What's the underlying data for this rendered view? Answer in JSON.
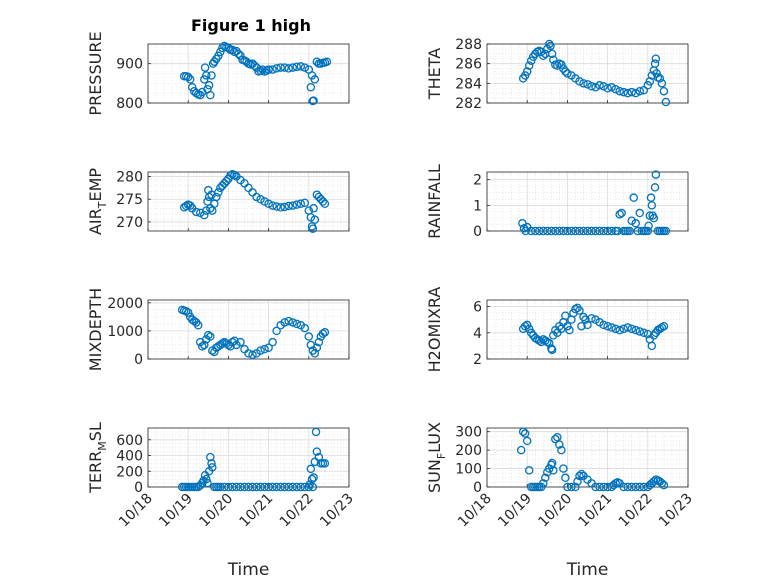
{
  "figure": {
    "title": "Figure 1 high"
  },
  "colors": {
    "marker": "#0072BD",
    "grid": "#dcdcdc",
    "axis": "#262626",
    "background": "#ffffff"
  },
  "x_ticks": [
    "10/18",
    "10/19",
    "10/20",
    "10/21",
    "10/22",
    "10/23"
  ],
  "x_label": "Time",
  "chart_data": [
    {
      "type": "scatter",
      "title": "Figure 1 high",
      "ylabel": "PRESSURE",
      "ylabel_sub": null,
      "xlabel": "",
      "xlim": [
        18,
        23
      ],
      "ylim": [
        800,
        950
      ],
      "yticks": [
        800,
        900
      ],
      "grid": "major+minor",
      "marker": "open circle",
      "x": [
        18.9,
        18.95,
        19.0,
        19.05,
        19.1,
        19.15,
        19.2,
        19.25,
        19.3,
        19.35,
        19.4,
        19.42,
        19.45,
        19.48,
        19.52,
        19.55,
        19.58,
        19.62,
        19.65,
        19.7,
        19.75,
        19.8,
        19.85,
        19.9,
        19.95,
        20.0,
        20.05,
        20.1,
        20.15,
        20.2,
        20.25,
        20.3,
        20.35,
        20.4,
        20.45,
        20.5,
        20.55,
        20.6,
        20.65,
        20.7,
        20.75,
        20.8,
        20.85,
        20.9,
        20.95,
        21.0,
        21.1,
        21.2,
        21.3,
        21.4,
        21.5,
        21.6,
        21.7,
        21.8,
        21.9,
        22.0,
        22.05,
        22.08,
        22.1,
        22.12,
        22.15,
        22.2,
        22.25,
        22.3,
        22.35,
        22.4,
        22.45
      ],
      "y": [
        868,
        868,
        866,
        860,
        840,
        830,
        825,
        822,
        820,
        828,
        860,
        890,
        870,
        835,
        845,
        820,
        870,
        900,
        905,
        912,
        920,
        930,
        940,
        945,
        942,
        940,
        935,
        935,
        930,
        932,
        925,
        920,
        910,
        908,
        905,
        900,
        898,
        900,
        895,
        890,
        880,
        882,
        885,
        880,
        882,
        885,
        885,
        888,
        890,
        890,
        888,
        890,
        892,
        893,
        890,
        885,
        840,
        870,
        805,
        806,
        860,
        905,
        900,
        900,
        902,
        903,
        905
      ]
    },
    {
      "type": "scatter",
      "ylabel": "THETA",
      "ylabel_sub": null,
      "xlabel": "",
      "xlim": [
        18,
        23
      ],
      "ylim": [
        282,
        288
      ],
      "yticks": [
        282,
        284,
        286,
        288
      ],
      "grid": "major+minor",
      "marker": "open circle",
      "x": [
        18.9,
        18.95,
        19.0,
        19.05,
        19.1,
        19.15,
        19.2,
        19.25,
        19.3,
        19.35,
        19.4,
        19.45,
        19.5,
        19.55,
        19.58,
        19.62,
        19.65,
        19.7,
        19.75,
        19.8,
        19.85,
        19.9,
        19.95,
        20.0,
        20.1,
        20.2,
        20.3,
        20.4,
        20.5,
        20.6,
        20.7,
        20.8,
        20.9,
        21.0,
        21.1,
        21.2,
        21.3,
        21.4,
        21.5,
        21.6,
        21.7,
        21.8,
        21.9,
        22.0,
        22.05,
        22.1,
        22.15,
        22.18,
        22.2,
        22.22,
        22.25,
        22.3,
        22.35,
        22.4,
        22.45
      ],
      "y": [
        284.5,
        284.8,
        285.2,
        285.8,
        286.3,
        286.7,
        287.0,
        287.2,
        287.3,
        287.2,
        286.8,
        287.0,
        287.5,
        288.0,
        287.8,
        287.0,
        286.4,
        285.9,
        285.8,
        286.0,
        285.9,
        285.5,
        285.2,
        285.0,
        284.8,
        284.5,
        284.2,
        284.0,
        283.9,
        283.7,
        283.6,
        283.8,
        283.7,
        283.5,
        283.6,
        283.4,
        283.2,
        283.1,
        283.0,
        283.1,
        283.0,
        283.2,
        283.3,
        283.8,
        284.2,
        284.8,
        285.3,
        286.0,
        286.5,
        285.0,
        284.6,
        284.5,
        284.0,
        283.2,
        282.1
      ]
    },
    {
      "type": "scatter",
      "ylabel": "AIR",
      "ylabel_sub": "T",
      "ylabel_rest": "EMP",
      "xlabel": "",
      "xlim": [
        18,
        23
      ],
      "ylim": [
        268,
        281
      ],
      "yticks": [
        270,
        275,
        280
      ],
      "grid": "major+minor",
      "marker": "open circle",
      "x": [
        18.9,
        18.95,
        19.0,
        19.05,
        19.1,
        19.2,
        19.3,
        19.4,
        19.45,
        19.48,
        19.5,
        19.52,
        19.55,
        19.58,
        19.6,
        19.65,
        19.7,
        19.75,
        19.8,
        19.85,
        19.9,
        19.95,
        20.0,
        20.05,
        20.1,
        20.15,
        20.2,
        20.3,
        20.4,
        20.5,
        20.6,
        20.7,
        20.8,
        20.9,
        21.0,
        21.1,
        21.2,
        21.3,
        21.4,
        21.5,
        21.6,
        21.7,
        21.8,
        21.9,
        22.0,
        22.05,
        22.08,
        22.1,
        22.12,
        22.15,
        22.2,
        22.25,
        22.3,
        22.35,
        22.4
      ],
      "y": [
        273.2,
        273.5,
        273.8,
        273.6,
        273.0,
        272.2,
        272.0,
        271.5,
        272.5,
        274.5,
        277.0,
        275.5,
        273.0,
        276.0,
        272.5,
        274.0,
        275.5,
        276.5,
        277.5,
        278.0,
        278.5,
        279.0,
        279.5,
        280.2,
        280.5,
        280.3,
        280.0,
        279.2,
        278.5,
        277.5,
        276.5,
        275.5,
        275.0,
        274.5,
        274.0,
        273.6,
        273.4,
        273.2,
        273.3,
        273.5,
        273.6,
        273.8,
        274.0,
        274.2,
        272.5,
        271.0,
        269.0,
        268.5,
        273.0,
        270.5,
        276.0,
        275.5,
        275.0,
        274.5,
        274.0
      ]
    },
    {
      "type": "scatter",
      "ylabel": "RAINFALL",
      "ylabel_sub": null,
      "xlabel": "",
      "xlim": [
        18,
        23
      ],
      "ylim": [
        0,
        2.3
      ],
      "yticks": [
        0,
        1,
        2
      ],
      "grid": "major+minor",
      "marker": "open circle",
      "x": [
        18.88,
        18.92,
        18.96,
        19.0,
        19.1,
        19.2,
        19.3,
        19.4,
        19.5,
        19.6,
        19.7,
        19.8,
        19.9,
        20.0,
        20.1,
        20.2,
        20.3,
        20.4,
        20.5,
        20.6,
        20.7,
        20.8,
        20.9,
        21.0,
        21.1,
        21.2,
        21.25,
        21.3,
        21.35,
        21.4,
        21.45,
        21.5,
        21.55,
        21.6,
        21.65,
        21.7,
        21.75,
        21.8,
        21.85,
        21.9,
        21.95,
        22.0,
        22.02,
        22.05,
        22.08,
        22.1,
        22.12,
        22.15,
        22.18,
        22.2,
        22.25,
        22.3,
        22.35,
        22.4,
        22.45
      ],
      "y": [
        0.3,
        0.1,
        0.0,
        0.15,
        0.0,
        0.0,
        0.0,
        0.0,
        0.0,
        0.0,
        0.0,
        0.0,
        0.0,
        0.0,
        0.0,
        0.0,
        0.0,
        0.0,
        0.0,
        0.0,
        0.0,
        0.0,
        0.0,
        0.0,
        0.0,
        0.0,
        0.0,
        0.65,
        0.7,
        0.0,
        0.0,
        0.0,
        0.0,
        0.4,
        1.3,
        0.3,
        0.0,
        0.7,
        0.0,
        0.0,
        0.0,
        0.0,
        0.2,
        0.6,
        1.3,
        1.0,
        0.6,
        0.5,
        1.7,
        2.2,
        0.0,
        0.0,
        0.0,
        0.0,
        0.0
      ]
    },
    {
      "type": "scatter",
      "ylabel": "MIXDEPTH",
      "ylabel_sub": null,
      "xlabel": "",
      "xlim": [
        18,
        23
      ],
      "ylim": [
        0,
        2100
      ],
      "yticks": [
        0,
        1000,
        2000
      ],
      "grid": "major+minor",
      "marker": "open circle",
      "x": [
        18.85,
        18.9,
        18.95,
        19.0,
        19.05,
        19.1,
        19.15,
        19.2,
        19.25,
        19.3,
        19.35,
        19.4,
        19.45,
        19.5,
        19.55,
        19.6,
        19.65,
        19.7,
        19.75,
        19.8,
        19.85,
        19.9,
        19.95,
        20.0,
        20.05,
        20.1,
        20.15,
        20.2,
        20.3,
        20.4,
        20.5,
        20.6,
        20.7,
        20.8,
        20.9,
        21.0,
        21.1,
        21.2,
        21.3,
        21.4,
        21.5,
        21.6,
        21.7,
        21.8,
        21.9,
        22.0,
        22.05,
        22.1,
        22.15,
        22.2,
        22.25,
        22.3,
        22.35,
        22.4
      ],
      "y": [
        1750,
        1720,
        1700,
        1650,
        1500,
        1400,
        1350,
        1300,
        1200,
        600,
        450,
        500,
        700,
        850,
        800,
        300,
        250,
        400,
        450,
        500,
        550,
        600,
        550,
        500,
        450,
        600,
        650,
        500,
        600,
        350,
        200,
        150,
        200,
        300,
        350,
        400,
        600,
        1000,
        1200,
        1300,
        1350,
        1300,
        1250,
        1200,
        1100,
        800,
        500,
        300,
        200,
        400,
        600,
        800,
        900,
        950
      ]
    },
    {
      "type": "scatter",
      "ylabel": "H2OMIXRA",
      "ylabel_sub": null,
      "xlabel": "",
      "xlim": [
        18,
        23
      ],
      "ylim": [
        2,
        6.5
      ],
      "yticks": [
        2,
        4,
        6
      ],
      "grid": "major+minor",
      "marker": "open circle",
      "x": [
        18.9,
        18.95,
        19.0,
        19.05,
        19.1,
        19.15,
        19.2,
        19.25,
        19.3,
        19.35,
        19.4,
        19.45,
        19.5,
        19.55,
        19.6,
        19.62,
        19.65,
        19.7,
        19.75,
        19.8,
        19.85,
        19.9,
        19.95,
        20.0,
        20.05,
        20.1,
        20.15,
        20.2,
        20.25,
        20.3,
        20.35,
        20.4,
        20.45,
        20.5,
        20.6,
        20.7,
        20.8,
        20.9,
        21.0,
        21.1,
        21.2,
        21.3,
        21.4,
        21.5,
        21.6,
        21.7,
        21.8,
        21.9,
        22.0,
        22.05,
        22.1,
        22.15,
        22.2,
        22.25,
        22.3,
        22.35,
        22.4
      ],
      "y": [
        4.3,
        4.5,
        4.6,
        4.3,
        4.0,
        3.8,
        3.6,
        3.5,
        3.4,
        3.3,
        3.5,
        3.4,
        3.3,
        3.2,
        2.8,
        2.7,
        3.8,
        4.2,
        4.0,
        4.5,
        4.3,
        4.8,
        5.3,
        4.5,
        4.2,
        5.0,
        5.5,
        5.8,
        5.9,
        5.7,
        4.5,
        5.2,
        5.0,
        4.6,
        5.1,
        5.0,
        4.8,
        4.6,
        4.5,
        4.4,
        4.3,
        4.2,
        4.3,
        4.4,
        4.3,
        4.2,
        4.1,
        4.0,
        3.9,
        3.5,
        3.0,
        3.8,
        4.0,
        4.2,
        4.3,
        4.4,
        4.5
      ]
    },
    {
      "type": "scatter",
      "ylabel": "TERR",
      "ylabel_sub": "M",
      "ylabel_rest": "SL",
      "xlabel": "Time",
      "xlim": [
        18,
        23
      ],
      "ylim": [
        0,
        750
      ],
      "yticks": [
        0,
        200,
        400,
        600
      ],
      "xticks": [
        "10/18",
        "10/19",
        "10/20",
        "10/21",
        "10/22",
        "10/23"
      ],
      "grid": "major+minor",
      "marker": "open circle",
      "x": [
        18.85,
        18.9,
        18.95,
        19.0,
        19.05,
        19.1,
        19.15,
        19.2,
        19.25,
        19.3,
        19.35,
        19.38,
        19.42,
        19.45,
        19.48,
        19.52,
        19.55,
        19.58,
        19.6,
        19.65,
        19.7,
        19.75,
        19.8,
        19.9,
        20.0,
        20.1,
        20.2,
        20.3,
        20.4,
        20.5,
        20.6,
        20.7,
        20.8,
        20.9,
        21.0,
        21.1,
        21.2,
        21.3,
        21.4,
        21.5,
        21.6,
        21.7,
        21.8,
        21.9,
        22.0,
        22.02,
        22.05,
        22.08,
        22.1,
        22.12,
        22.15,
        22.18,
        22.2,
        22.25,
        22.3,
        22.35,
        22.4
      ],
      "y": [
        0,
        0,
        0,
        0,
        0,
        0,
        0,
        0,
        0,
        20,
        50,
        80,
        150,
        100,
        50,
        200,
        380,
        300,
        250,
        0,
        0,
        0,
        0,
        0,
        0,
        0,
        0,
        0,
        0,
        0,
        0,
        0,
        0,
        0,
        0,
        0,
        0,
        0,
        0,
        0,
        0,
        0,
        0,
        0,
        0,
        30,
        230,
        100,
        0,
        120,
        320,
        700,
        450,
        380,
        300,
        300,
        300
      ]
    },
    {
      "type": "scatter",
      "ylabel": "SUN",
      "ylabel_sub": "F",
      "ylabel_rest": "LUX",
      "xlabel": "Time",
      "xlim": [
        18,
        23
      ],
      "ylim": [
        0,
        320
      ],
      "yticks": [
        0,
        100,
        200,
        300
      ],
      "xticks": [
        "10/18",
        "10/19",
        "10/20",
        "10/21",
        "10/22",
        "10/23"
      ],
      "grid": "major+minor",
      "marker": "open circle",
      "x": [
        18.85,
        18.9,
        18.95,
        19.0,
        19.05,
        19.1,
        19.15,
        19.2,
        19.25,
        19.3,
        19.35,
        19.4,
        19.45,
        19.5,
        19.55,
        19.6,
        19.62,
        19.65,
        19.7,
        19.75,
        19.8,
        19.85,
        19.9,
        19.95,
        20.0,
        20.1,
        20.2,
        20.25,
        20.3,
        20.35,
        20.4,
        20.5,
        20.6,
        20.7,
        20.8,
        20.9,
        21.0,
        21.1,
        21.15,
        21.2,
        21.25,
        21.3,
        21.4,
        21.5,
        21.6,
        21.7,
        21.8,
        21.9,
        22.0,
        22.05,
        22.1,
        22.15,
        22.2,
        22.25,
        22.3,
        22.35,
        22.4
      ],
      "y": [
        200,
        300,
        290,
        250,
        90,
        0,
        0,
        0,
        0,
        0,
        0,
        20,
        50,
        80,
        100,
        120,
        130,
        90,
        260,
        270,
        230,
        200,
        100,
        50,
        0,
        0,
        0,
        30,
        60,
        70,
        60,
        40,
        20,
        0,
        0,
        0,
        0,
        0,
        10,
        20,
        25,
        20,
        0,
        0,
        0,
        0,
        0,
        0,
        0,
        10,
        20,
        30,
        40,
        35,
        30,
        20,
        10
      ]
    }
  ]
}
